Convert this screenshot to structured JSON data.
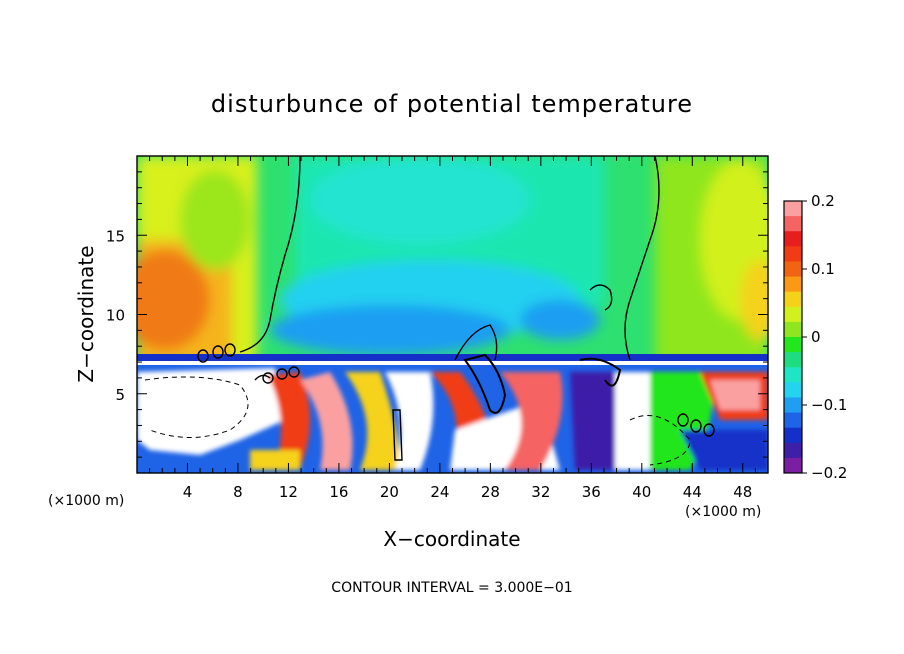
{
  "chart_data": {
    "type": "heatmap",
    "title": "disturbunce of potential temperature",
    "xlabel": "X−coordinate",
    "ylabel": "Z−coordinate",
    "x_unit": "(×1000 m)",
    "x_unit_left": "(×1000 m)",
    "xlim": [
      0,
      50
    ],
    "ylim": [
      0,
      20
    ],
    "x_ticks": [
      4,
      8,
      12,
      16,
      20,
      24,
      28,
      32,
      36,
      40,
      44,
      48
    ],
    "y_ticks": [
      5,
      10,
      15
    ],
    "x_tick_labels": [
      "4",
      "8",
      "12",
      "16",
      "20",
      "24",
      "28",
      "32",
      "36",
      "40",
      "44",
      "48"
    ],
    "y_tick_labels": [
      "5",
      "10",
      "15"
    ],
    "colorbar": {
      "range": [
        -0.2,
        0.2
      ],
      "tick_labels": [
        "0.2",
        "0.1",
        "0",
        "−0.1",
        "−0.2"
      ],
      "tick_values": [
        0.2,
        0.1,
        0,
        -0.1,
        -0.2
      ]
    },
    "contour_interval_text": "CONTOUR INTERVAL = 3.000E−01",
    "layers": {
      "upper_layer_z": [
        7,
        20
      ],
      "lower_layer_z": [
        0,
        7
      ],
      "interface_z": 7
    }
  },
  "colors": {
    "bar": [
      "#7b1fa2",
      "#3d1fa8",
      "#1530c8",
      "#1f63e6",
      "#1f9ef2",
      "#22d4f0",
      "#1ee6c4",
      "#1edc80",
      "#22e61e",
      "#8fe61e",
      "#d2f01e",
      "#f5d21a",
      "#fa9a14",
      "#f06414",
      "#f03c14",
      "#e61e1e",
      "#f56464",
      "#faa0a0"
    ]
  }
}
